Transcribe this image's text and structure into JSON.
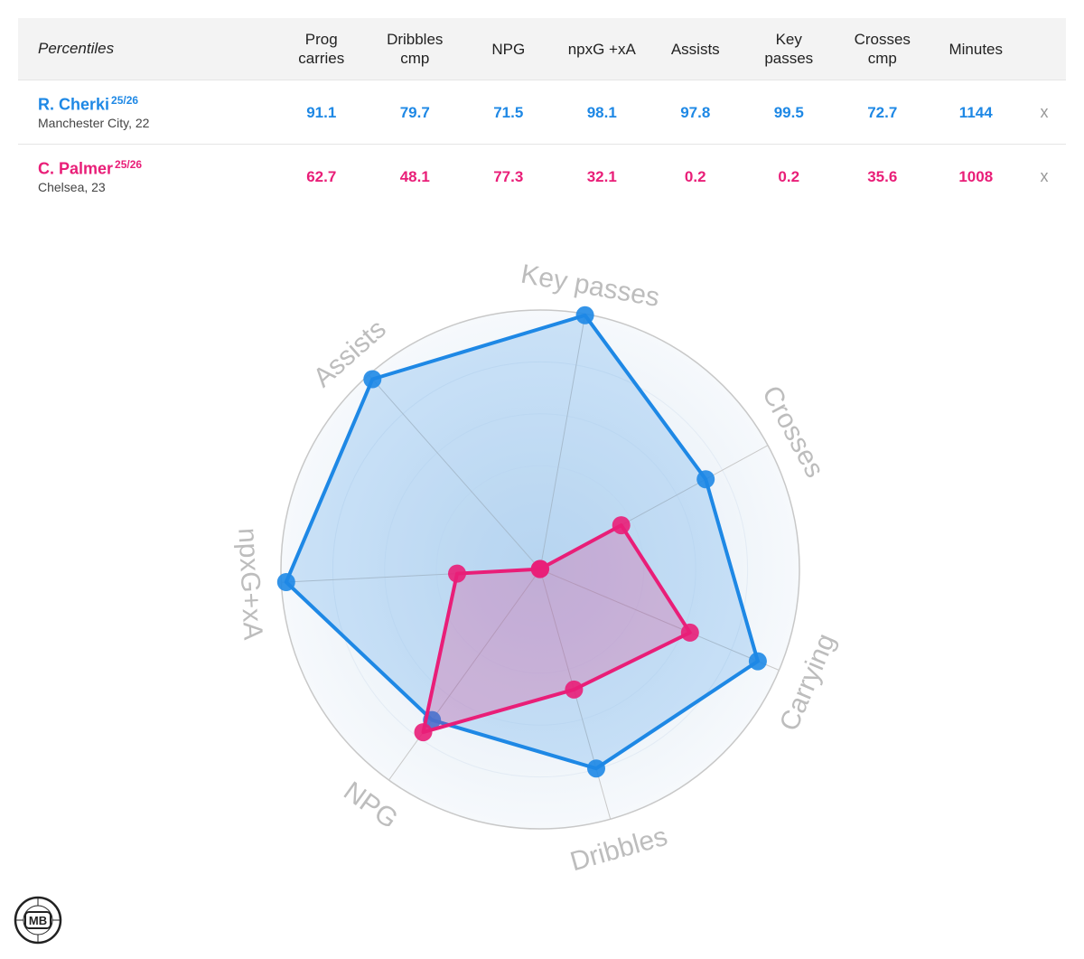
{
  "table": {
    "header_label": "Percentiles",
    "columns": [
      "Prog\ncarries",
      "Dribbles\ncmp",
      "NPG",
      "npxG +xA",
      "Assists",
      "Key\npasses",
      "Crosses\ncmp",
      "Minutes"
    ],
    "remove_label": "x",
    "players": [
      {
        "name": "R. Cherki",
        "season": "25/26",
        "meta": "Manchester City, 22",
        "values": [
          "91.1",
          "79.7",
          "71.5",
          "98.1",
          "97.8",
          "99.5",
          "72.7",
          "1144"
        ]
      },
      {
        "name": "C. Palmer",
        "season": "25/26",
        "meta": "Chelsea, 23",
        "values": [
          "62.7",
          "48.1",
          "77.3",
          "32.1",
          "0.2",
          "0.2",
          "35.6",
          "1008"
        ]
      }
    ]
  },
  "chart_data": {
    "type": "radar",
    "axes": [
      "Key passes",
      "Crosses",
      "Carrying",
      "Dribbles",
      "NPG",
      "npxG+xA",
      "Assists"
    ],
    "range": [
      0,
      100
    ],
    "series": [
      {
        "name": "R. Cherki",
        "color": "#1e88e5",
        "values": [
          99.5,
          72.7,
          91.1,
          79.7,
          71.5,
          98.1,
          97.8
        ]
      },
      {
        "name": "C. Palmer",
        "color": "#e91e78",
        "values": [
          0.2,
          35.6,
          62.7,
          48.1,
          77.3,
          32.1,
          0.2
        ]
      }
    ]
  },
  "colors": {
    "blue": "#1e88e5",
    "pink": "#e91e78",
    "axis_label": "#bdbdbd"
  },
  "logo": {
    "text": "MB"
  }
}
